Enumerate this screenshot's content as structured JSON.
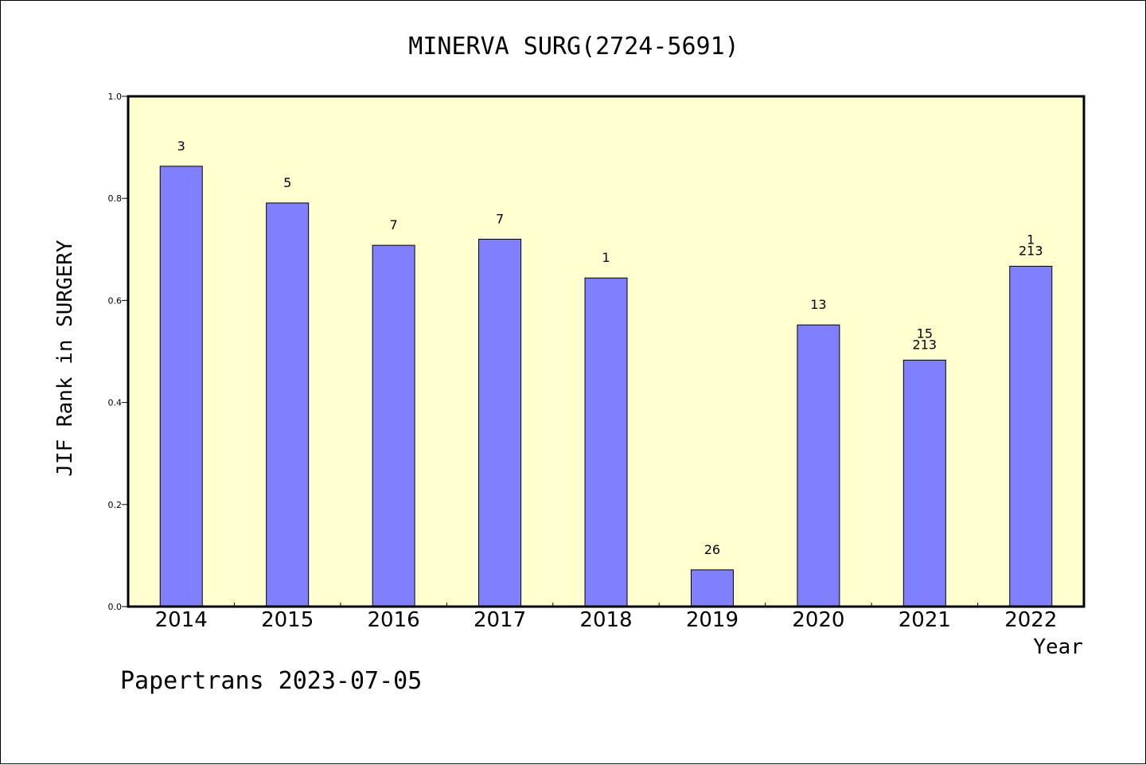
{
  "chart_data": {
    "type": "bar",
    "title": "MINERVA SURG(2724-5691)",
    "xlabel": "Year",
    "ylabel": "JIF Rank in SURGERY",
    "ylim": [
      0,
      1.0
    ],
    "yticks": [
      "0.0",
      "0.2",
      "0.4",
      "0.6",
      "0.8",
      "1.0"
    ],
    "categories": [
      "2014",
      "2015",
      "2016",
      "2017",
      "2018",
      "2019",
      "2020",
      "2021",
      "2022"
    ],
    "values": [
      0.863,
      0.791,
      0.708,
      0.72,
      0.644,
      0.072,
      0.552,
      0.483,
      0.667
    ],
    "labels": [
      [
        "3"
      ],
      [
        "5"
      ],
      [
        "7"
      ],
      [
        "7"
      ],
      [
        "1"
      ],
      [
        "26"
      ],
      [
        "13"
      ],
      [
        "15",
        "213"
      ],
      [
        "1",
        "213"
      ]
    ],
    "grid": false,
    "colors": {
      "plot_background": "#ffffd0",
      "bar_fill": "#8080ff",
      "bar_stroke": "#000000"
    }
  },
  "footer": "Papertrans 2023-07-05"
}
